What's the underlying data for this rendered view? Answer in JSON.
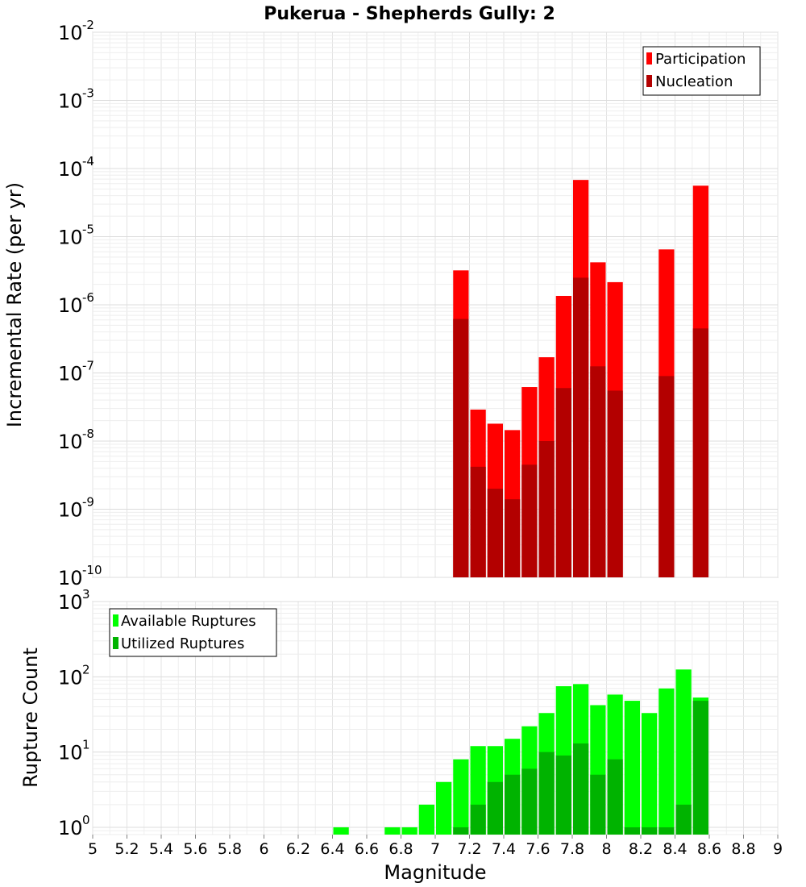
{
  "title": "Pukerua - Shepherds Gully: 2",
  "chart_data": [
    {
      "type": "bar",
      "ylabel": "Incremental Rate (per yr)",
      "yscale": "log",
      "ylim": [
        1e-10,
        0.01
      ],
      "xlim": [
        5,
        9
      ],
      "grid": true,
      "legend_position": "top-right",
      "y_tick_base": "10",
      "y_tick_exponents": [
        "-10",
        "-9",
        "-8",
        "-7",
        "-6",
        "-5",
        "-4",
        "-3",
        "-2"
      ],
      "colors": {
        "Participation": "#ff0000",
        "Nucleation": "#b30000"
      },
      "series": [
        {
          "name": "Participation",
          "x": [
            7.15,
            7.25,
            7.35,
            7.45,
            7.55,
            7.65,
            7.75,
            7.85,
            7.95,
            8.05,
            8.35,
            8.55
          ],
          "values": [
            3.2e-06,
            2.9e-08,
            1.8e-08,
            1.45e-08,
            6.2e-08,
            1.7e-07,
            1.35e-06,
            6.8e-05,
            4.2e-06,
            2.15e-06,
            6.5e-06,
            5.6e-05
          ]
        },
        {
          "name": "Nucleation",
          "x": [
            7.15,
            7.25,
            7.35,
            7.45,
            7.55,
            7.65,
            7.75,
            7.85,
            7.95,
            8.05,
            8.35,
            8.55
          ],
          "values": [
            6.2e-07,
            4.2e-09,
            2e-09,
            1.4e-09,
            4.5e-09,
            1e-08,
            6e-08,
            2.5e-06,
            1.25e-07,
            5.5e-08,
            9e-08,
            4.5e-07
          ]
        }
      ]
    },
    {
      "type": "bar",
      "xlabel": "Magnitude",
      "ylabel": "Rupture Count",
      "yscale": "log",
      "ylim": [
        0.8,
        1000
      ],
      "xlim": [
        5,
        9
      ],
      "grid": true,
      "legend_position": "top-left",
      "y_tick_base": "10",
      "y_tick_exponents": [
        "0",
        "1",
        "2",
        "3"
      ],
      "x_ticks": [
        "5",
        "5.2",
        "5.4",
        "5.6",
        "5.8",
        "6",
        "6.2",
        "6.4",
        "6.6",
        "6.8",
        "7",
        "7.2",
        "7.4",
        "7.6",
        "7.8",
        "8",
        "8.2",
        "8.4",
        "8.6",
        "8.8",
        "9"
      ],
      "colors": {
        "Available Ruptures": "#00ff00",
        "Utilized Ruptures": "#00b300"
      },
      "series": [
        {
          "name": "Available Ruptures",
          "x": [
            6.45,
            6.75,
            6.85,
            6.95,
            7.05,
            7.15,
            7.25,
            7.35,
            7.45,
            7.55,
            7.65,
            7.75,
            7.85,
            7.95,
            8.05,
            8.15,
            8.25,
            8.35,
            8.45,
            8.55
          ],
          "values": [
            1,
            1,
            1,
            2,
            4,
            8,
            12,
            12,
            15,
            22,
            33,
            75,
            80,
            42,
            58,
            48,
            33,
            70,
            125,
            53
          ]
        },
        {
          "name": "Utilized Ruptures",
          "x": [
            7.15,
            7.25,
            7.35,
            7.45,
            7.55,
            7.65,
            7.75,
            7.85,
            7.95,
            8.05,
            8.15,
            8.25,
            8.35,
            8.45,
            8.55
          ],
          "values": [
            1,
            2,
            4,
            5,
            6,
            10,
            9,
            13,
            5,
            8,
            1,
            1,
            1,
            2,
            48
          ]
        }
      ]
    }
  ]
}
